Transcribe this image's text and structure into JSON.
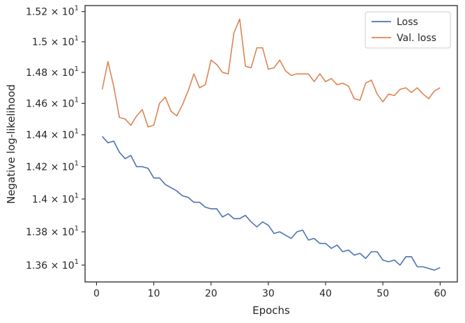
{
  "chart_data": {
    "type": "line",
    "xlabel": "Epochs",
    "ylabel": "Negative log-likelihood",
    "xlim": [
      -2,
      63
    ],
    "ylim": [
      13.5,
      15.24
    ],
    "yscale": "log",
    "grid": false,
    "legend_position": "top-right",
    "x_ticks": [
      0,
      10,
      20,
      30,
      40,
      50,
      60
    ],
    "x_tick_labels": [
      "0",
      "10",
      "20",
      "30",
      "40",
      "50",
      "60"
    ],
    "y_ticks": [
      13.6,
      13.8,
      14.0,
      14.2,
      14.4,
      14.6,
      14.8,
      15.0,
      15.2
    ],
    "y_tick_labels": [
      {
        "mant": "1.36",
        "exp": "1"
      },
      {
        "mant": "1.38",
        "exp": "1"
      },
      {
        "mant": "1.4",
        "exp": "1"
      },
      {
        "mant": "1.42",
        "exp": "1"
      },
      {
        "mant": "1.44",
        "exp": "1"
      },
      {
        "mant": "1.46",
        "exp": "1"
      },
      {
        "mant": "1.48",
        "exp": "1"
      },
      {
        "mant": "1.5",
        "exp": "1"
      },
      {
        "mant": "1.52",
        "exp": "1"
      }
    ],
    "x": [
      1,
      2,
      3,
      4,
      5,
      6,
      7,
      8,
      9,
      10,
      11,
      12,
      13,
      14,
      15,
      16,
      17,
      18,
      19,
      20,
      21,
      22,
      23,
      24,
      25,
      26,
      27,
      28,
      29,
      30,
      31,
      32,
      33,
      34,
      35,
      36,
      37,
      38,
      39,
      40,
      41,
      42,
      43,
      44,
      45,
      46,
      47,
      48,
      49,
      50,
      51,
      52,
      53,
      54,
      55,
      56,
      57,
      58,
      59,
      60
    ],
    "series": [
      {
        "name": "Loss",
        "color": "#4c72b0",
        "values": [
          14.39,
          14.35,
          14.36,
          14.29,
          14.25,
          14.27,
          14.2,
          14.2,
          14.19,
          14.13,
          14.13,
          14.09,
          14.07,
          14.05,
          14.02,
          14.01,
          13.98,
          13.98,
          13.95,
          13.94,
          13.94,
          13.89,
          13.91,
          13.88,
          13.88,
          13.9,
          13.86,
          13.83,
          13.86,
          13.84,
          13.79,
          13.8,
          13.78,
          13.76,
          13.8,
          13.81,
          13.75,
          13.76,
          13.73,
          13.73,
          13.7,
          13.72,
          13.68,
          13.69,
          13.66,
          13.67,
          13.64,
          13.68,
          13.68,
          13.63,
          13.62,
          13.63,
          13.6,
          13.65,
          13.65,
          13.59,
          13.59,
          13.58,
          13.57,
          13.585
        ]
      },
      {
        "name": "Val. loss",
        "color": "#dd8452",
        "values": [
          14.69,
          14.87,
          14.71,
          14.51,
          14.5,
          14.46,
          14.52,
          14.56,
          14.45,
          14.46,
          14.6,
          14.64,
          14.55,
          14.52,
          14.59,
          14.68,
          14.79,
          14.7,
          14.72,
          14.88,
          14.85,
          14.8,
          14.79,
          15.06,
          15.15,
          14.84,
          14.83,
          14.96,
          14.96,
          14.82,
          14.83,
          14.88,
          14.81,
          14.78,
          14.79,
          14.79,
          14.79,
          14.74,
          14.79,
          14.74,
          14.76,
          14.72,
          14.73,
          14.71,
          14.63,
          14.62,
          14.73,
          14.75,
          14.66,
          14.61,
          14.66,
          14.65,
          14.69,
          14.7,
          14.67,
          14.7,
          14.66,
          14.63,
          14.68,
          14.7
        ]
      }
    ]
  }
}
